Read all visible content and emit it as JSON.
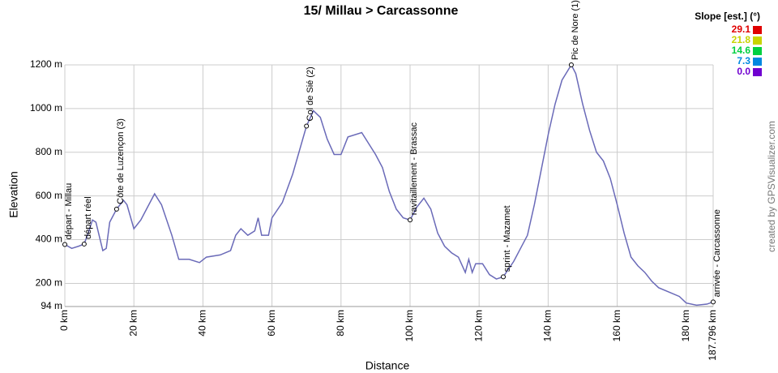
{
  "chart_data": {
    "type": "line",
    "title": "15/ Millau > Carcassonne",
    "x_label": "Distance",
    "y_label": "Elevation",
    "credit": "created by GPSVisualizer.com",
    "grid": true,
    "xlim": [
      0,
      187.796
    ],
    "ylim": [
      94,
      1200
    ],
    "xticks": [
      {
        "value": 0,
        "label": "0 km"
      },
      {
        "value": 20,
        "label": "20 km"
      },
      {
        "value": 40,
        "label": "40 km"
      },
      {
        "value": 60,
        "label": "60 km"
      },
      {
        "value": 80,
        "label": "80 km"
      },
      {
        "value": 100,
        "label": "100 km"
      },
      {
        "value": 120,
        "label": "120 km"
      },
      {
        "value": 140,
        "label": "140 km"
      },
      {
        "value": 160,
        "label": "160 km"
      },
      {
        "value": 180,
        "label": "180 km"
      },
      {
        "value": 187.796,
        "label": "187.796 km"
      }
    ],
    "yticks": [
      {
        "value": 94,
        "label": "94 m"
      },
      {
        "value": 200,
        "label": "200 m"
      },
      {
        "value": 400,
        "label": "400 m"
      },
      {
        "value": 600,
        "label": "600 m"
      },
      {
        "value": 800,
        "label": "800 m"
      },
      {
        "value": 1000,
        "label": "1000 m"
      },
      {
        "value": 1200,
        "label": "1200 m"
      }
    ],
    "series": [
      {
        "color": "#6a6ab8",
        "x": [
          0,
          2,
          4,
          5.6,
          7,
          8,
          9,
          11,
          12,
          13,
          15,
          17,
          18,
          20,
          22,
          24,
          26,
          28,
          31,
          33,
          36,
          39,
          41,
          45,
          48,
          49.5,
          51,
          53,
          55,
          56,
          57,
          59,
          60,
          63,
          66,
          70,
          72,
          74,
          76,
          78,
          80,
          82,
          86,
          88,
          90,
          92,
          94,
          96,
          98,
          100,
          102,
          104,
          106,
          108,
          110,
          112,
          114,
          116,
          117,
          118,
          119,
          121,
          123,
          125,
          127,
          130,
          132,
          134,
          136,
          138,
          140,
          142,
          144,
          146.7,
          148,
          150,
          152,
          154,
          156,
          158,
          160,
          162,
          164,
          166,
          168,
          170,
          172,
          175,
          178,
          180,
          183,
          186,
          187.796
        ],
        "values": [
          378,
          360,
          370,
          380,
          440,
          490,
          480,
          350,
          360,
          480,
          540,
          580,
          560,
          450,
          490,
          550,
          610,
          560,
          420,
          310,
          310,
          295,
          320,
          330,
          350,
          420,
          450,
          420,
          440,
          500,
          420,
          420,
          500,
          570,
          700,
          920,
          990,
          960,
          860,
          790,
          790,
          870,
          890,
          840,
          790,
          730,
          620,
          540,
          500,
          490,
          550,
          590,
          540,
          430,
          370,
          340,
          320,
          250,
          310,
          250,
          290,
          290,
          240,
          220,
          230,
          300,
          360,
          420,
          560,
          720,
          880,
          1020,
          1130,
          1200,
          1160,
          1020,
          900,
          800,
          760,
          680,
          560,
          430,
          320,
          280,
          250,
          210,
          180,
          160,
          140,
          110,
          100,
          105,
          115
        ]
      }
    ],
    "annotations": [
      {
        "label": "départ - Millau",
        "x": 0,
        "y": 378
      },
      {
        "label": "départ réel",
        "x": 5.6,
        "y": 380
      },
      {
        "label": "Côte de Luzençon (3)",
        "x": 15,
        "y": 540
      },
      {
        "label": "Col de Sié (2)",
        "x": 70,
        "y": 920
      },
      {
        "label": "ravitaillement - Brassac",
        "x": 100,
        "y": 490
      },
      {
        "label": "sprint - Mazamet",
        "x": 127,
        "y": 230
      },
      {
        "label": "Pic de Nore (1)",
        "x": 146.7,
        "y": 1200
      },
      {
        "label": "arrivée - Carcassonne",
        "x": 187.796,
        "y": 115
      }
    ],
    "legend": {
      "title": "Slope [est.] (°)",
      "values": [
        29.1,
        21.8,
        14.6,
        7.3,
        0
      ],
      "value_labels": [
        "29.1",
        "21.8",
        "14.6",
        "7.3",
        "0.0"
      ],
      "colors": [
        "#e00000",
        "#c8d400",
        "#00d040",
        "#0088e0",
        "#7000d0"
      ]
    }
  }
}
